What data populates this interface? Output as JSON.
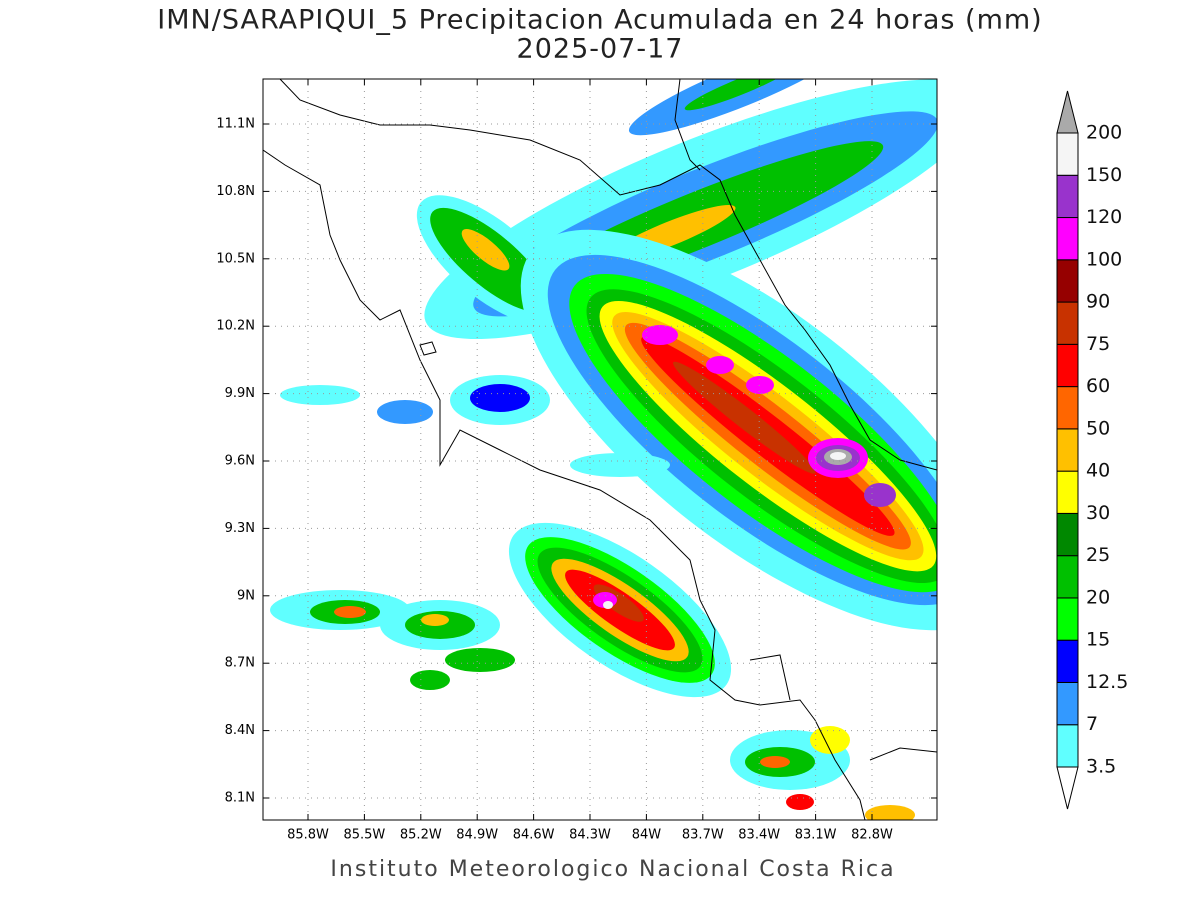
{
  "title": "IMN/SARAPIQUI_5 Precipitacion Acumulada en 24 horas (mm)",
  "subtitle": "2025-07-17",
  "lat_labels": [
    "11.1N",
    "10.8N",
    "10.5N",
    "10.2N",
    "9.9N",
    "9.6N",
    "9.3N",
    "9N",
    "8.7N",
    "8.4N",
    "8.1N"
  ],
  "lon_labels": [
    "85.8W",
    "85.5W",
    "85.2W",
    "84.9W",
    "84.6W",
    "84.3W",
    "84W",
    "83.7W",
    "83.4W",
    "83.1W",
    "82.8W"
  ],
  "colorbar": {
    "labels": [
      "3.5",
      "7",
      "12.5",
      "15",
      "20",
      "25",
      "30",
      "40",
      "50",
      "60",
      "75",
      "90",
      "100",
      "120",
      "150",
      "200"
    ],
    "colors": [
      "#60ffff",
      "#3399ff",
      "#0000ff",
      "#00ff00",
      "#00c000",
      "#008800",
      "#ffff00",
      "#ffc000",
      "#ff6600",
      "#ff0000",
      "#c83200",
      "#960000",
      "#ff00ff",
      "#9933cc",
      "#f5f5f5"
    ],
    "under_color": "#ffffff",
    "over_color": "#aaaaaa"
  },
  "footer": "Instituto Meteorologico Nacional Costa Rica"
}
